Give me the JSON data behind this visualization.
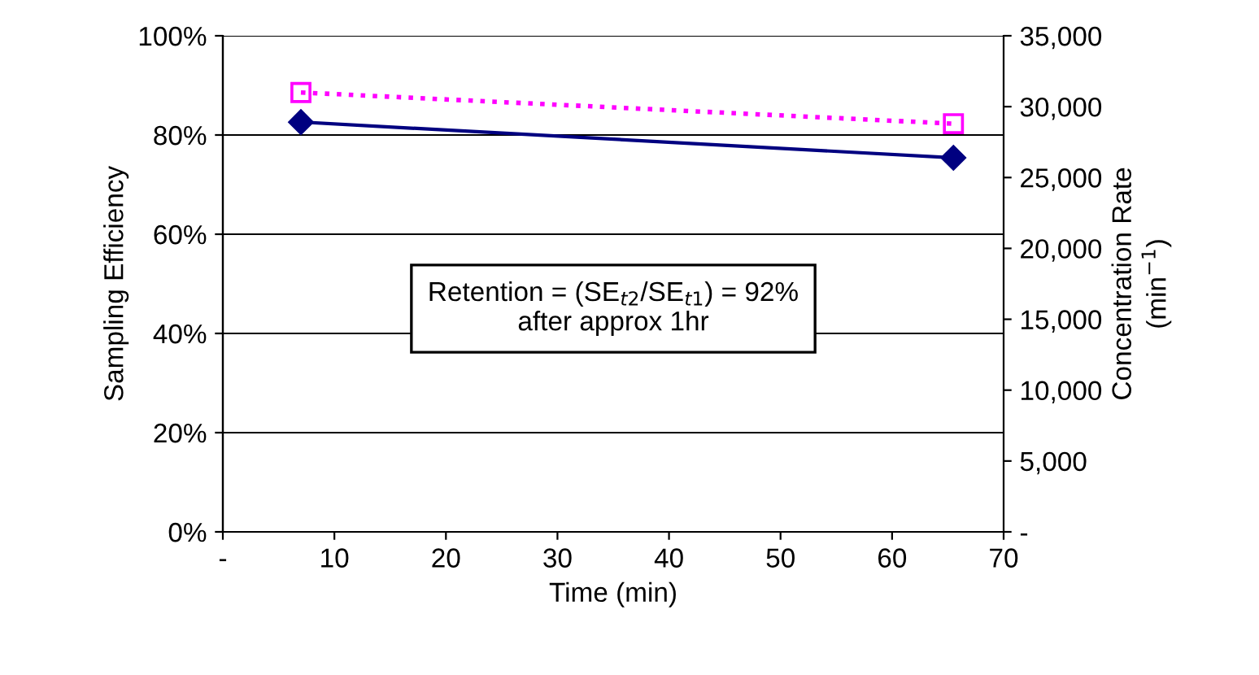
{
  "chart_data": {
    "type": "line",
    "xlabel": "Time (min)",
    "ylabel": "Sampling Efficiency",
    "y2label": "Concentration Rate\n(min$^{−1}$)",
    "series": [
      {
        "color": "#000080",
        "values": [
          82.6,
          75.4
        ],
        "marker": "diamond",
        "line_style": "solid"
      },
      {
        "color": "#ff00ff",
        "values": [
          31000,
          28800
        ],
        "marker": "square",
        "line_style": "dotted",
        "axis": "y2"
      }
    ],
    "x": [
      7,
      65.5
    ],
    "xlim": [
      0,
      70
    ],
    "xticks": [
      {
        "value": 0,
        "label": "-"
      },
      10,
      20,
      30,
      40,
      50,
      60,
      70
    ],
    "ylim": [
      0,
      100
    ],
    "yticks": [
      {
        "value": 0,
        "label": "0%"
      },
      {
        "value": 20,
        "label": "20%"
      },
      {
        "value": 40,
        "label": "40%"
      },
      {
        "value": 60,
        "label": "60%"
      },
      {
        "value": 80,
        "label": "80%"
      },
      {
        "value": 100,
        "label": "100%"
      }
    ],
    "y2lim": [
      0,
      35000
    ],
    "y2ticks": [
      {
        "value": 0,
        "label": "-"
      },
      {
        "value": 5000,
        "label": "5,000"
      },
      {
        "value": 10000,
        "label": "10,000"
      },
      {
        "value": 15000,
        "label": "15,000"
      },
      {
        "value": 20000,
        "label": "20,000"
      },
      {
        "value": 25000,
        "label": "25,000"
      },
      {
        "value": 30000,
        "label": "30,000"
      },
      {
        "value": 35000,
        "label": "35,000"
      }
    ],
    "grid": "y",
    "annotations": [
      "Retention = (SE$_{t2}$/SE$_{t1}$) = 92%\nafter approx 1hr"
    ]
  }
}
